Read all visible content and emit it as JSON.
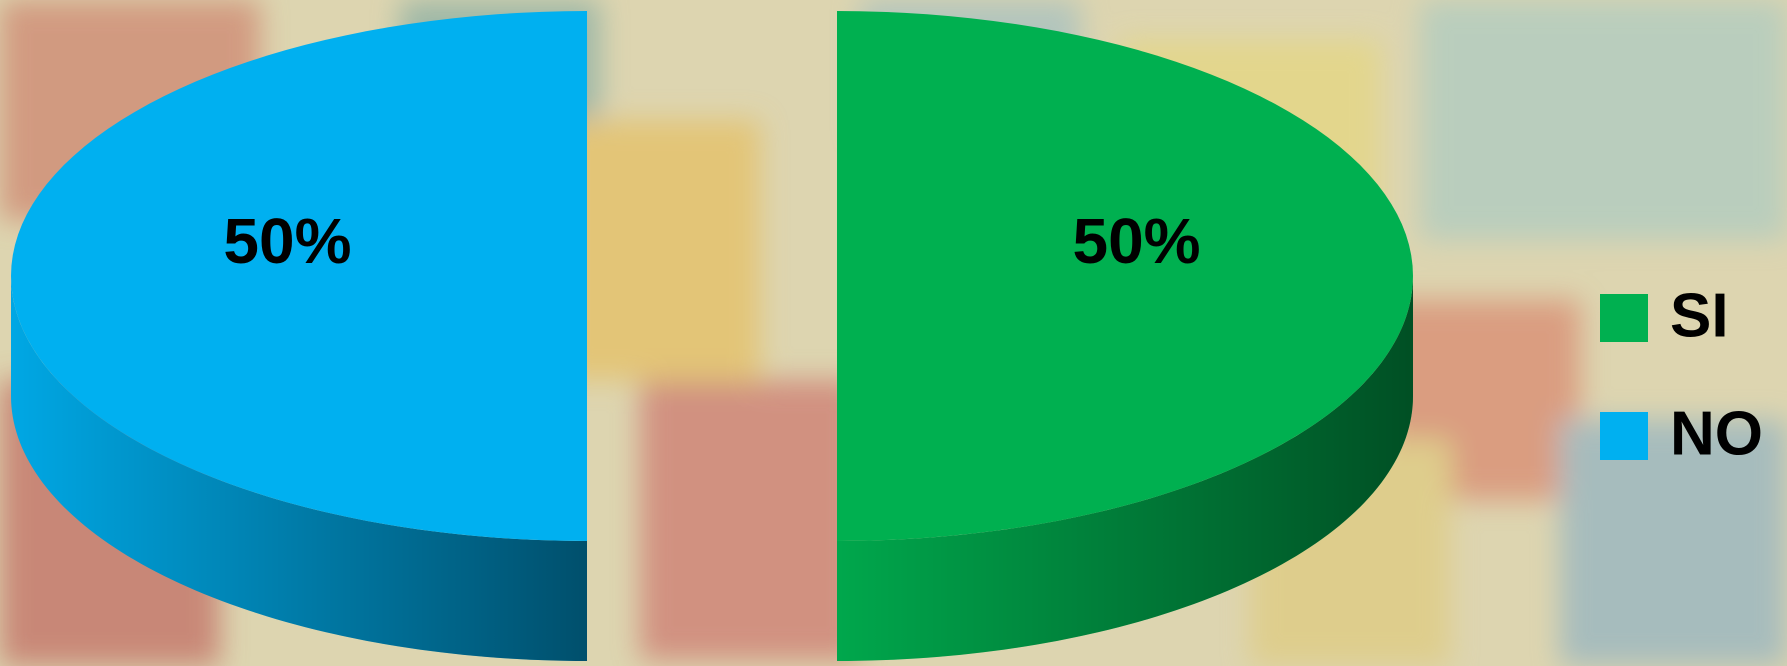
{
  "chart_data": {
    "type": "pie",
    "categories": [
      "SI",
      "NO"
    ],
    "values": [
      50,
      50
    ],
    "value_labels": [
      "50%",
      "50%"
    ],
    "colors": [
      "#00b050",
      "#00b0f0"
    ],
    "legend": "right",
    "three_d": true,
    "exploded": true
  }
}
